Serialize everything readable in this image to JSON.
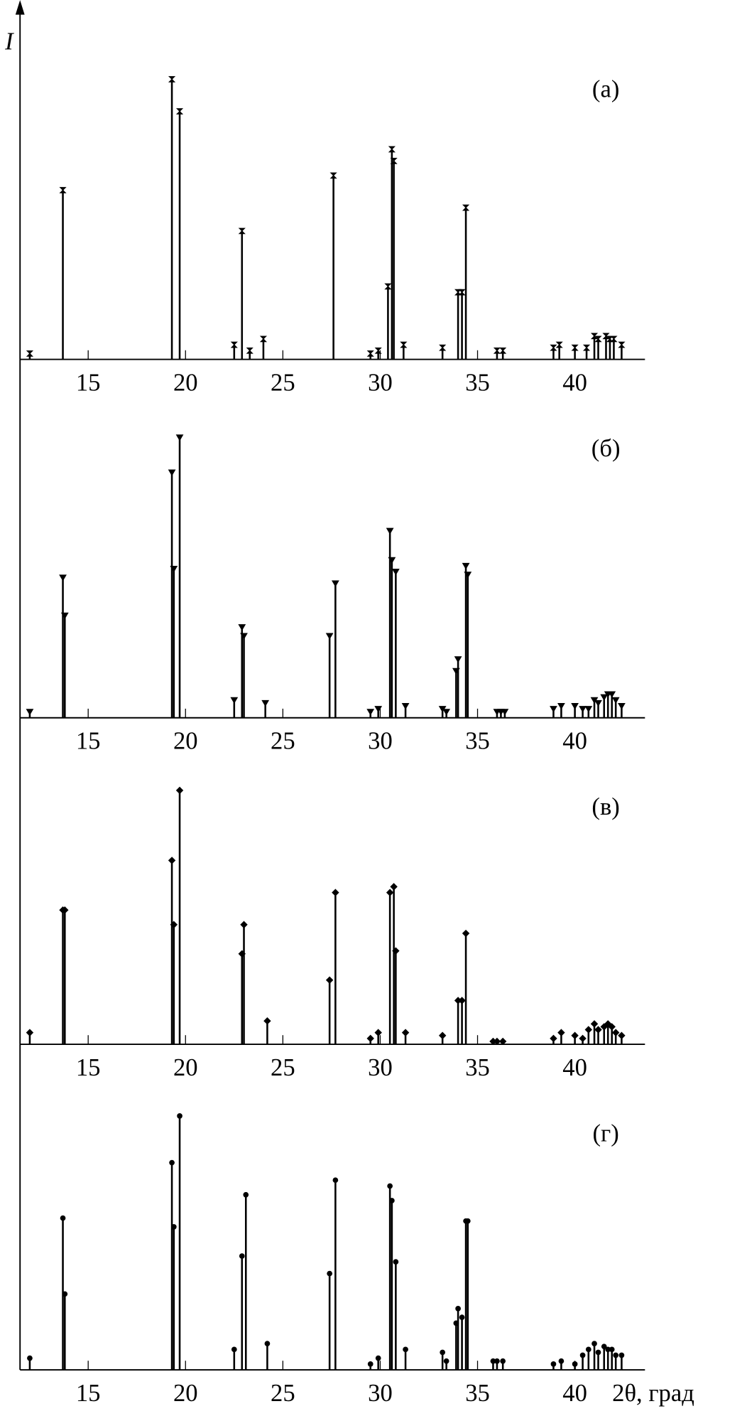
{
  "chart_data": [
    {
      "type": "stick",
      "label": "(a)",
      "y_label": "I",
      "marker": "bowtie",
      "color": "#000000",
      "xlim": [
        11.5,
        43.6
      ],
      "xticks": [
        15,
        20,
        25,
        30,
        35,
        40
      ],
      "ylim": [
        0,
        100
      ],
      "x": [
        12.0,
        13.7,
        19.3,
        19.7,
        22.5,
        22.9,
        23.3,
        24.0,
        27.6,
        29.5,
        29.9,
        30.4,
        30.6,
        30.7,
        31.2,
        33.2,
        34.0,
        34.2,
        34.4,
        36.0,
        36.3,
        38.9,
        39.2,
        40.0,
        40.6,
        41.0,
        41.2,
        41.6,
        41.8,
        42.0,
        42.4
      ],
      "values": [
        2,
        58,
        96,
        85,
        5,
        44,
        3,
        7,
        63,
        2,
        3,
        25,
        72,
        68,
        5,
        4,
        23,
        23,
        52,
        3,
        3,
        4,
        5,
        4,
        4,
        8,
        7,
        8,
        7,
        7,
        5
      ]
    },
    {
      "type": "stick",
      "label": "(б)",
      "marker": "triangle",
      "color": "#000000",
      "xlim": [
        11.5,
        43.6
      ],
      "xticks": [
        15,
        20,
        25,
        30,
        35,
        40
      ],
      "ylim": [
        0,
        100
      ],
      "x": [
        12.0,
        13.7,
        13.8,
        19.3,
        19.4,
        19.7,
        22.5,
        22.9,
        23.0,
        24.1,
        27.4,
        27.7,
        29.5,
        29.9,
        30.5,
        30.6,
        30.8,
        31.3,
        33.2,
        33.4,
        33.9,
        34.0,
        34.4,
        34.5,
        36.0,
        36.2,
        36.4,
        38.9,
        39.3,
        40.0,
        40.4,
        40.7,
        41.0,
        41.2,
        41.5,
        41.7,
        41.9,
        42.1,
        42.4
      ],
      "values": [
        2,
        48,
        35,
        84,
        51,
        96,
        6,
        31,
        28,
        5,
        28,
        46,
        2,
        3,
        64,
        54,
        50,
        4,
        3,
        2,
        16,
        20,
        52,
        49,
        2,
        2,
        2,
        3,
        4,
        4,
        3,
        3,
        6,
        5,
        7,
        8,
        8,
        6,
        4
      ]
    },
    {
      "type": "stick",
      "label": "(в)",
      "marker": "diamond",
      "color": "#000000",
      "xlim": [
        11.5,
        43.6
      ],
      "xticks": [
        15,
        20,
        25,
        30,
        35,
        40
      ],
      "ylim": [
        0,
        100
      ],
      "x": [
        12.0,
        13.7,
        13.8,
        19.3,
        19.4,
        19.7,
        22.9,
        23.0,
        24.2,
        27.4,
        27.7,
        29.5,
        29.9,
        30.5,
        30.7,
        30.8,
        31.3,
        33.2,
        34.0,
        34.2,
        34.4,
        35.8,
        36.0,
        36.3,
        38.9,
        39.3,
        40.0,
        40.4,
        40.7,
        41.0,
        41.2,
        41.5,
        41.7,
        41.9,
        42.1,
        42.4
      ],
      "values": [
        4,
        46,
        46,
        63,
        41,
        87,
        31,
        41,
        8,
        22,
        52,
        2,
        4,
        52,
        54,
        32,
        4,
        3,
        15,
        15,
        38,
        1,
        1,
        1,
        2,
        4,
        3,
        2,
        5,
        7,
        5,
        6,
        7,
        6,
        4,
        3
      ]
    },
    {
      "type": "stick",
      "label": "(г)",
      "x_label": "2θ, град",
      "marker": "circle",
      "color": "#000000",
      "xlim": [
        11.5,
        43.6
      ],
      "xticks": [
        15,
        20,
        25,
        30,
        35,
        40
      ],
      "ylim": [
        0,
        100
      ],
      "x": [
        12.0,
        13.7,
        13.8,
        19.3,
        19.4,
        19.7,
        22.5,
        22.9,
        23.1,
        24.2,
        27.4,
        27.7,
        29.5,
        29.9,
        30.5,
        30.6,
        30.8,
        31.3,
        33.2,
        33.4,
        33.9,
        34.0,
        34.2,
        34.4,
        34.5,
        35.8,
        36.0,
        36.3,
        38.9,
        39.3,
        40.0,
        40.4,
        40.7,
        41.0,
        41.2,
        41.5,
        41.7,
        41.9,
        42.1,
        42.4
      ],
      "values": [
        4,
        52,
        26,
        71,
        49,
        87,
        7,
        39,
        60,
        9,
        33,
        65,
        2,
        4,
        63,
        58,
        37,
        7,
        6,
        3,
        16,
        21,
        18,
        51,
        51,
        3,
        3,
        3,
        2,
        3,
        2,
        5,
        7,
        9,
        6,
        8,
        7,
        7,
        5,
        5
      ]
    }
  ]
}
